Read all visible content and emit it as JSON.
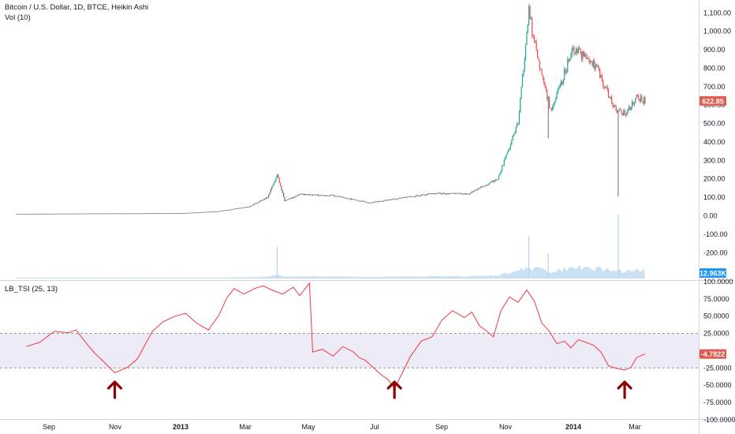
{
  "header": {
    "symbol_line": "Bitcoin / U.S. Dollar, 1D, BTCE, Heikin Ashi",
    "volume_legend": "Vol (10)",
    "indicator_legend": "LB_TSI (25, 13)"
  },
  "colors": {
    "up": "#26a69a",
    "down": "#ef5350",
    "neutral": "#6a6d78",
    "volume": "#b3d4ef",
    "tsi": "#f23645",
    "band_fill": "#ecebf6",
    "arrow": "#8b0000",
    "price_badge": "#e05a4e",
    "volume_badge": "#2196f3"
  },
  "price_axis": {
    "ticks": [
      "1,100.00",
      "1,000.00",
      "900.00",
      "800.00",
      "700.00",
      "600.00",
      "500.00",
      "400.00",
      "300.00",
      "200.00",
      "100.00",
      "0.00",
      "-100.00",
      "-200.00"
    ],
    "tick_values": [
      1100,
      1000,
      900,
      800,
      700,
      600,
      500,
      400,
      300,
      200,
      100,
      0,
      -100,
      -200
    ],
    "last_price_label": "622.85",
    "last_price_value": 622.85,
    "volume_label": "12.963K"
  },
  "tsi_axis": {
    "ticks": [
      "100.0000",
      "75.0000",
      "50.0000",
      "25.0000",
      "-25.0000",
      "-50.0000",
      "-75.0000",
      "-100.0000"
    ],
    "tick_values": [
      100,
      75,
      50,
      25,
      -25,
      -50,
      -75,
      -100
    ],
    "upper_band": 25,
    "lower_band": -25,
    "current_label": "-4.7822",
    "current_value": -4.7822
  },
  "time_axis": {
    "labels": [
      "Sep",
      "Nov",
      "2013",
      "Mar",
      "May",
      "Jul",
      "Sep",
      "Nov",
      "2014",
      "Mar"
    ],
    "bold": [
      false,
      false,
      true,
      false,
      false,
      false,
      false,
      false,
      true,
      false
    ]
  },
  "chart_data": [
    {
      "type": "candlestick",
      "title": "Bitcoin / U.S. Dollar, 1D, BTCE, Heikin Ashi",
      "x_range": [
        "2012-08-10",
        "2014-03-18"
      ],
      "ylim": [
        -200,
        1120
      ],
      "close_path": [
        {
          "date": "2012-08-10",
          "value": 10
        },
        {
          "date": "2012-10-01",
          "value": 12
        },
        {
          "date": "2012-12-01",
          "value": 13
        },
        {
          "date": "2013-01-15",
          "value": 15
        },
        {
          "date": "2013-02-15",
          "value": 25
        },
        {
          "date": "2013-03-15",
          "value": 50
        },
        {
          "date": "2013-04-01",
          "value": 100
        },
        {
          "date": "2013-04-10",
          "value": 220
        },
        {
          "date": "2013-04-17",
          "value": 80
        },
        {
          "date": "2013-05-01",
          "value": 115
        },
        {
          "date": "2013-06-01",
          "value": 110
        },
        {
          "date": "2013-07-05",
          "value": 70
        },
        {
          "date": "2013-08-01",
          "value": 95
        },
        {
          "date": "2013-09-01",
          "value": 120
        },
        {
          "date": "2013-10-05",
          "value": 120
        },
        {
          "date": "2013-11-01",
          "value": 200
        },
        {
          "date": "2013-11-20",
          "value": 500
        },
        {
          "date": "2013-11-30",
          "value": 1100
        },
        {
          "date": "2013-12-08",
          "value": 860
        },
        {
          "date": "2013-12-20",
          "value": 580
        },
        {
          "date": "2013-12-31",
          "value": 740
        },
        {
          "date": "2014-01-10",
          "value": 900
        },
        {
          "date": "2014-01-31",
          "value": 820
        },
        {
          "date": "2014-02-10",
          "value": 680
        },
        {
          "date": "2014-02-20",
          "value": 560
        },
        {
          "date": "2014-03-01",
          "value": 560
        },
        {
          "date": "2014-03-10",
          "value": 640
        },
        {
          "date": "2014-03-18",
          "value": 622.85
        }
      ],
      "wick_extremes": [
        {
          "date": "2014-02-21",
          "low": 105
        },
        {
          "date": "2013-12-18",
          "low": 420
        },
        {
          "date": "2013-11-30",
          "high": 1100
        }
      ]
    },
    {
      "type": "area",
      "series": [
        {
          "name": "Vol (10)",
          "last_value": "12.963K"
        }
      ],
      "peaks": [
        {
          "date": "2013-04-10",
          "relative": 0.45
        },
        {
          "date": "2013-11-30",
          "relative": 0.6
        },
        {
          "date": "2013-12-18",
          "relative": 0.35
        },
        {
          "date": "2014-02-21",
          "relative": 0.9
        }
      ]
    },
    {
      "type": "line",
      "title": "LB_TSI (25, 13)",
      "ylim": [
        -100,
        100
      ],
      "points": [
        {
          "date": "2012-08-20",
          "value": 6
        },
        {
          "date": "2012-09-01",
          "value": 12
        },
        {
          "date": "2012-09-15",
          "value": 28
        },
        {
          "date": "2012-09-28",
          "value": 26
        },
        {
          "date": "2012-10-05",
          "value": 30
        },
        {
          "date": "2012-10-15",
          "value": 10
        },
        {
          "date": "2012-10-22",
          "value": -3
        },
        {
          "date": "2012-11-01",
          "value": -18
        },
        {
          "date": "2012-11-10",
          "value": -32
        },
        {
          "date": "2012-11-22",
          "value": -24
        },
        {
          "date": "2012-12-01",
          "value": -12
        },
        {
          "date": "2012-12-15",
          "value": 28
        },
        {
          "date": "2012-12-25",
          "value": 42
        },
        {
          "date": "2013-01-05",
          "value": 50
        },
        {
          "date": "2013-01-15",
          "value": 54
        },
        {
          "date": "2013-01-25",
          "value": 40
        },
        {
          "date": "2013-02-05",
          "value": 30
        },
        {
          "date": "2013-02-15",
          "value": 52
        },
        {
          "date": "2013-02-22",
          "value": 76
        },
        {
          "date": "2013-03-01",
          "value": 90
        },
        {
          "date": "2013-03-10",
          "value": 82
        },
        {
          "date": "2013-03-20",
          "value": 90
        },
        {
          "date": "2013-03-28",
          "value": 94
        },
        {
          "date": "2013-04-05",
          "value": 88
        },
        {
          "date": "2013-04-15",
          "value": 82
        },
        {
          "date": "2013-04-25",
          "value": 92
        },
        {
          "date": "2013-05-01",
          "value": 80
        },
        {
          "date": "2013-05-10",
          "value": 98
        },
        {
          "date": "2013-05-13",
          "value": -2
        },
        {
          "date": "2013-05-22",
          "value": 2
        },
        {
          "date": "2013-06-01",
          "value": -8
        },
        {
          "date": "2013-06-10",
          "value": 6
        },
        {
          "date": "2013-06-20",
          "value": -2
        },
        {
          "date": "2013-06-25",
          "value": -10
        },
        {
          "date": "2013-07-01",
          "value": -14
        },
        {
          "date": "2013-07-08",
          "value": -24
        },
        {
          "date": "2013-07-15",
          "value": -34
        },
        {
          "date": "2013-07-22",
          "value": -42
        },
        {
          "date": "2013-07-28",
          "value": -55
        },
        {
          "date": "2013-08-05",
          "value": -30
        },
        {
          "date": "2013-08-12",
          "value": -8
        },
        {
          "date": "2013-08-22",
          "value": 14
        },
        {
          "date": "2013-09-01",
          "value": 20
        },
        {
          "date": "2013-09-10",
          "value": 44
        },
        {
          "date": "2013-09-20",
          "value": 58
        },
        {
          "date": "2013-10-01",
          "value": 48
        },
        {
          "date": "2013-10-08",
          "value": 56
        },
        {
          "date": "2013-10-15",
          "value": 36
        },
        {
          "date": "2013-10-22",
          "value": 28
        },
        {
          "date": "2013-10-28",
          "value": 20
        },
        {
          "date": "2013-11-04",
          "value": 58
        },
        {
          "date": "2013-11-12",
          "value": 78
        },
        {
          "date": "2013-11-20",
          "value": 70
        },
        {
          "date": "2013-11-28",
          "value": 88
        },
        {
          "date": "2013-12-05",
          "value": 72
        },
        {
          "date": "2013-12-12",
          "value": 40
        },
        {
          "date": "2013-12-19",
          "value": 28
        },
        {
          "date": "2013-12-26",
          "value": 10
        },
        {
          "date": "2014-01-02",
          "value": 14
        },
        {
          "date": "2014-01-08",
          "value": 4
        },
        {
          "date": "2014-01-15",
          "value": 16
        },
        {
          "date": "2014-01-22",
          "value": 12
        },
        {
          "date": "2014-01-29",
          "value": 8
        },
        {
          "date": "2014-02-05",
          "value": -2
        },
        {
          "date": "2014-02-12",
          "value": -22
        },
        {
          "date": "2014-02-20",
          "value": -26
        },
        {
          "date": "2014-02-27",
          "value": -28
        },
        {
          "date": "2014-03-05",
          "value": -24
        },
        {
          "date": "2014-03-10",
          "value": -10
        },
        {
          "date": "2014-03-18",
          "value": -4.78
        }
      ],
      "reference_lines": [
        25,
        -25
      ],
      "annotations": [
        {
          "type": "up-arrow",
          "date": "2012-11-10"
        },
        {
          "type": "up-arrow",
          "date": "2013-07-28"
        },
        {
          "type": "up-arrow",
          "date": "2014-02-27"
        }
      ]
    }
  ]
}
